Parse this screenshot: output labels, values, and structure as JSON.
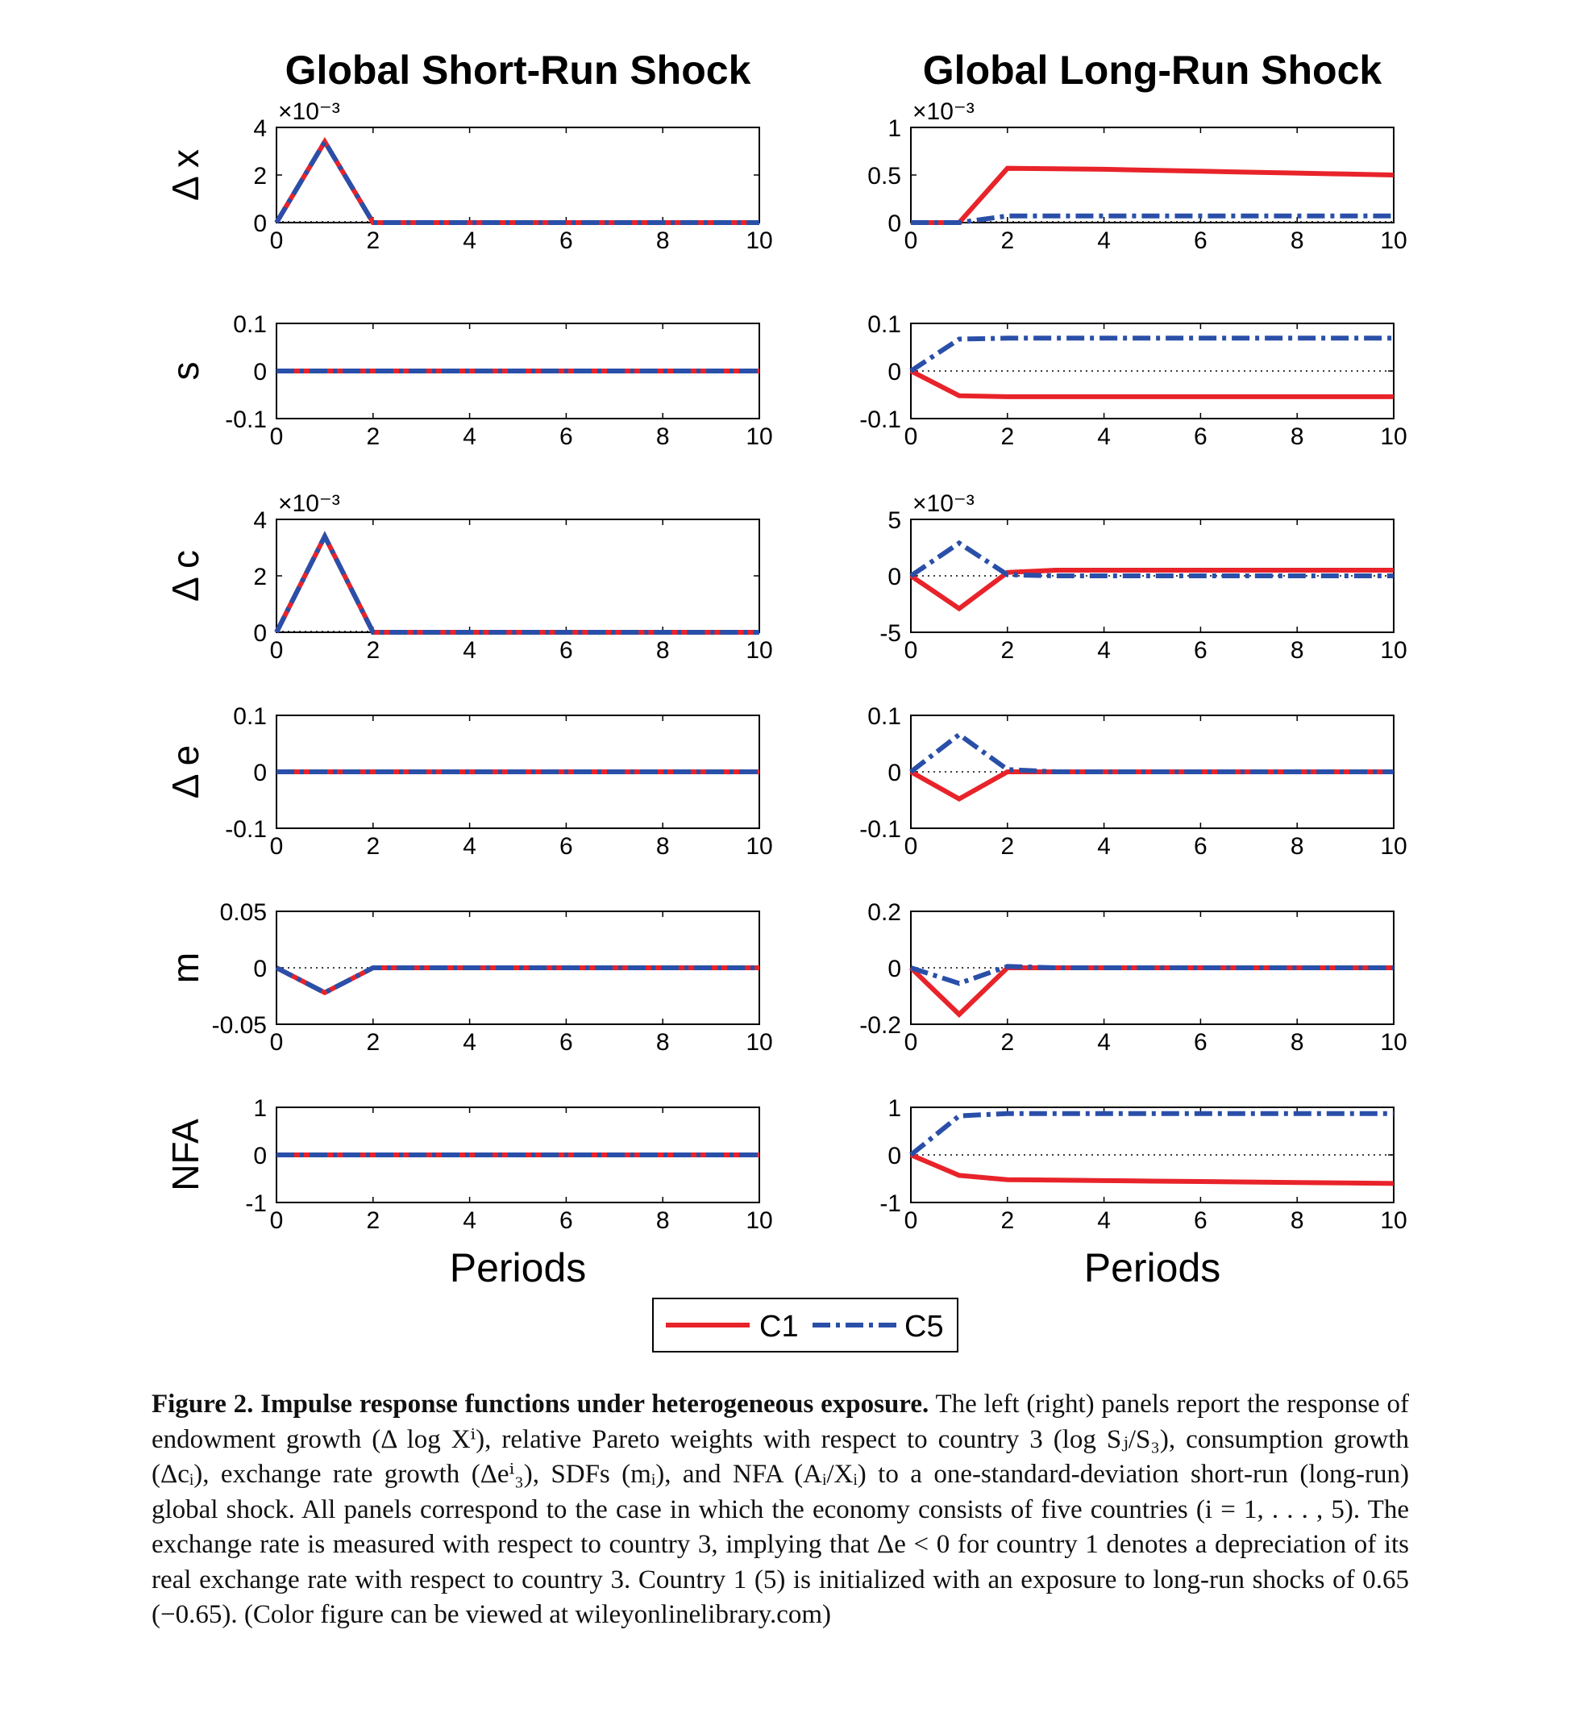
{
  "colors": {
    "c1": "#e8232a",
    "c5": "#2a4fa8"
  },
  "legend": {
    "c1_label": "C1",
    "c5_label": "C5"
  },
  "chart_data": [
    {
      "type": "line",
      "column_title": "Global Short-Run Shock",
      "ylabel": "Δ x",
      "exponent": "×10⁻³",
      "xlim": [
        0,
        10
      ],
      "ylim": [
        0,
        4
      ],
      "yticks": [
        "0",
        "2",
        "4"
      ],
      "xticks": [
        "0",
        "2",
        "4",
        "6",
        "8",
        "10"
      ],
      "x": [
        0,
        1,
        2,
        3,
        4,
        5,
        6,
        7,
        8,
        9,
        10
      ],
      "series": [
        {
          "name": "C1",
          "values": [
            0,
            3.4,
            0,
            0,
            0,
            0,
            0,
            0,
            0,
            0,
            0
          ]
        },
        {
          "name": "C5",
          "values": [
            0,
            3.4,
            0,
            0,
            0,
            0,
            0,
            0,
            0,
            0,
            0
          ]
        }
      ]
    },
    {
      "type": "line",
      "column_title": "Global Long-Run Shock",
      "ylabel": "",
      "exponent": "×10⁻³",
      "xlim": [
        0,
        10
      ],
      "ylim": [
        0,
        1
      ],
      "yticks": [
        "0",
        "0.5",
        "1"
      ],
      "xticks": [
        "0",
        "2",
        "4",
        "6",
        "8",
        "10"
      ],
      "x": [
        0,
        1,
        2,
        3,
        4,
        5,
        6,
        7,
        8,
        9,
        10
      ],
      "series": [
        {
          "name": "C1",
          "values": [
            0,
            0,
            0.57,
            0.565,
            0.56,
            0.55,
            0.54,
            0.53,
            0.52,
            0.51,
            0.5
          ]
        },
        {
          "name": "C5",
          "values": [
            0,
            0,
            0.07,
            0.07,
            0.07,
            0.07,
            0.07,
            0.07,
            0.07,
            0.07,
            0.07
          ]
        }
      ]
    },
    {
      "type": "line",
      "ylabel": "s",
      "exponent": "",
      "xlim": [
        0,
        10
      ],
      "ylim": [
        -0.1,
        0.1
      ],
      "yticks": [
        "-0.1",
        "0",
        "0.1"
      ],
      "xticks": [
        "0",
        "2",
        "4",
        "6",
        "8",
        "10"
      ],
      "x": [
        0,
        1,
        2,
        3,
        4,
        5,
        6,
        7,
        8,
        9,
        10
      ],
      "series": [
        {
          "name": "C1",
          "values": [
            0,
            0,
            0,
            0,
            0,
            0,
            0,
            0,
            0,
            0,
            0
          ]
        },
        {
          "name": "C5",
          "values": [
            0,
            0,
            0,
            0,
            0,
            0,
            0,
            0,
            0,
            0,
            0
          ]
        }
      ]
    },
    {
      "type": "line",
      "ylabel": "",
      "exponent": "",
      "xlim": [
        0,
        10
      ],
      "ylim": [
        -0.1,
        0.1
      ],
      "yticks": [
        "-0.1",
        "0",
        "0.1"
      ],
      "xticks": [
        "0",
        "2",
        "4",
        "6",
        "8",
        "10"
      ],
      "x": [
        0,
        1,
        2,
        3,
        4,
        5,
        6,
        7,
        8,
        9,
        10
      ],
      "series": [
        {
          "name": "C1",
          "values": [
            0,
            -0.052,
            -0.054,
            -0.054,
            -0.054,
            -0.054,
            -0.054,
            -0.054,
            -0.054,
            -0.054,
            -0.054
          ]
        },
        {
          "name": "C5",
          "values": [
            0,
            0.067,
            0.069,
            0.069,
            0.069,
            0.069,
            0.069,
            0.069,
            0.069,
            0.069,
            0.069
          ]
        }
      ]
    },
    {
      "type": "line",
      "ylabel": "Δ c",
      "exponent": "×10⁻³",
      "xlim": [
        0,
        10
      ],
      "ylim": [
        0,
        4
      ],
      "yticks": [
        "0",
        "2",
        "4"
      ],
      "xticks": [
        "0",
        "2",
        "4",
        "6",
        "8",
        "10"
      ],
      "x": [
        0,
        1,
        2,
        3,
        4,
        5,
        6,
        7,
        8,
        9,
        10
      ],
      "series": [
        {
          "name": "C1",
          "values": [
            0,
            3.4,
            0,
            0,
            0,
            0,
            0,
            0,
            0,
            0,
            0
          ]
        },
        {
          "name": "C5",
          "values": [
            0,
            3.4,
            0,
            0,
            0,
            0,
            0,
            0,
            0,
            0,
            0
          ]
        }
      ]
    },
    {
      "type": "line",
      "ylabel": "",
      "exponent": "×10⁻³",
      "xlim": [
        0,
        10
      ],
      "ylim": [
        -5,
        5
      ],
      "yticks": [
        "-5",
        "0",
        "5"
      ],
      "xticks": [
        "0",
        "2",
        "4",
        "6",
        "8",
        "10"
      ],
      "x": [
        0,
        1,
        2,
        3,
        4,
        5,
        6,
        7,
        8,
        9,
        10
      ],
      "series": [
        {
          "name": "C1",
          "values": [
            0,
            -2.9,
            0.3,
            0.5,
            0.5,
            0.5,
            0.5,
            0.5,
            0.5,
            0.5,
            0.5
          ]
        },
        {
          "name": "C5",
          "values": [
            0,
            2.9,
            0.1,
            0,
            0,
            0,
            0,
            0,
            0,
            0,
            0
          ]
        }
      ]
    },
    {
      "type": "line",
      "ylabel": "Δ e",
      "exponent": "",
      "xlim": [
        0,
        10
      ],
      "ylim": [
        -0.1,
        0.1
      ],
      "yticks": [
        "-0.1",
        "0",
        "0.1"
      ],
      "xticks": [
        "0",
        "2",
        "4",
        "6",
        "8",
        "10"
      ],
      "x": [
        0,
        1,
        2,
        3,
        4,
        5,
        6,
        7,
        8,
        9,
        10
      ],
      "series": [
        {
          "name": "C1",
          "values": [
            0,
            0,
            0,
            0,
            0,
            0,
            0,
            0,
            0,
            0,
            0
          ]
        },
        {
          "name": "C5",
          "values": [
            0,
            0,
            0,
            0,
            0,
            0,
            0,
            0,
            0,
            0,
            0
          ]
        }
      ]
    },
    {
      "type": "line",
      "ylabel": "",
      "exponent": "",
      "xlim": [
        0,
        10
      ],
      "ylim": [
        -0.1,
        0.1
      ],
      "yticks": [
        "-0.1",
        "0",
        "0.1"
      ],
      "xticks": [
        "0",
        "2",
        "4",
        "6",
        "8",
        "10"
      ],
      "x": [
        0,
        1,
        2,
        3,
        4,
        5,
        6,
        7,
        8,
        9,
        10
      ],
      "series": [
        {
          "name": "C1",
          "values": [
            0,
            -0.048,
            0,
            0,
            0,
            0,
            0,
            0,
            0,
            0,
            0
          ]
        },
        {
          "name": "C5",
          "values": [
            0,
            0.066,
            0.004,
            0,
            0,
            0,
            0,
            0,
            0,
            0,
            0
          ]
        }
      ]
    },
    {
      "type": "line",
      "ylabel": "m",
      "exponent": "",
      "xlim": [
        0,
        10
      ],
      "ylim": [
        -0.05,
        0.05
      ],
      "yticks": [
        "-0.05",
        "0",
        "0.05"
      ],
      "xticks": [
        "0",
        "2",
        "4",
        "6",
        "8",
        "10"
      ],
      "x": [
        0,
        1,
        2,
        3,
        4,
        5,
        6,
        7,
        8,
        9,
        10
      ],
      "series": [
        {
          "name": "C1",
          "values": [
            0,
            -0.022,
            0,
            0,
            0,
            0,
            0,
            0,
            0,
            0,
            0
          ]
        },
        {
          "name": "C5",
          "values": [
            0,
            -0.022,
            0,
            0,
            0,
            0,
            0,
            0,
            0,
            0,
            0
          ]
        }
      ]
    },
    {
      "type": "line",
      "ylabel": "",
      "exponent": "",
      "xlim": [
        0,
        10
      ],
      "ylim": [
        -0.2,
        0.2
      ],
      "yticks": [
        "-0.2",
        "0",
        "0.2"
      ],
      "xticks": [
        "0",
        "2",
        "4",
        "6",
        "8",
        "10"
      ],
      "x": [
        0,
        1,
        2,
        3,
        4,
        5,
        6,
        7,
        8,
        9,
        10
      ],
      "series": [
        {
          "name": "C1",
          "values": [
            0,
            -0.165,
            0,
            0,
            0,
            0,
            0,
            0,
            0,
            0,
            0
          ]
        },
        {
          "name": "C5",
          "values": [
            0,
            -0.055,
            0.005,
            0,
            0,
            0,
            0,
            0,
            0,
            0,
            0
          ]
        }
      ]
    },
    {
      "type": "line",
      "ylabel": "NFA",
      "exponent": "",
      "xlim": [
        0,
        10
      ],
      "ylim": [
        -1,
        1
      ],
      "yticks": [
        "-1",
        "0",
        "1"
      ],
      "xticks": [
        "0",
        "2",
        "4",
        "6",
        "8",
        "10"
      ],
      "xlabel": "Periods",
      "x": [
        0,
        1,
        2,
        3,
        4,
        5,
        6,
        7,
        8,
        9,
        10
      ],
      "series": [
        {
          "name": "C1",
          "values": [
            0,
            0,
            0,
            0,
            0,
            0,
            0,
            0,
            0,
            0,
            0
          ]
        },
        {
          "name": "C5",
          "values": [
            0,
            0,
            0,
            0,
            0,
            0,
            0,
            0,
            0,
            0,
            0
          ]
        }
      ]
    },
    {
      "type": "line",
      "ylabel": "",
      "exponent": "",
      "xlim": [
        0,
        10
      ],
      "ylim": [
        -1,
        1
      ],
      "yticks": [
        "-1",
        "0",
        "1"
      ],
      "xticks": [
        "0",
        "2",
        "4",
        "6",
        "8",
        "10"
      ],
      "xlabel": "Periods",
      "x": [
        0,
        1,
        2,
        3,
        4,
        5,
        6,
        7,
        8,
        9,
        10
      ],
      "series": [
        {
          "name": "C1",
          "values": [
            0,
            -0.43,
            -0.52,
            -0.53,
            -0.54,
            -0.55,
            -0.56,
            -0.57,
            -0.58,
            -0.59,
            -0.6
          ]
        },
        {
          "name": "C5",
          "values": [
            0,
            0.82,
            0.87,
            0.87,
            0.87,
            0.87,
            0.87,
            0.87,
            0.87,
            0.87,
            0.87
          ]
        }
      ]
    }
  ],
  "caption": {
    "label": "Figure 2.",
    "title": "Impulse response functions under heterogeneous exposure.",
    "text": "The left (right) panels report the response of endowment growth (Δ log Xⁱ), relative Pareto weights with respect to country 3 (log Sⱼ/S₃), consumption growth (Δcᵢ), exchange rate growth (Δeⁱ₃), SDFs (mᵢ), and NFA (Aᵢ/Xᵢ) to a one-standard-deviation short-run (long-run) global shock. All panels correspond to the case in which the economy consists of five countries (i = 1, . . . , 5). The exchange rate is measured with respect to country 3, implying that Δe < 0 for country 1 denotes a depreciation of its real exchange rate with respect to country 3. Country 1 (5) is initialized with an exposure to long-run shocks of 0.65 (−0.65). (Color figure can be viewed at wileyonlinelibrary.com)"
  }
}
